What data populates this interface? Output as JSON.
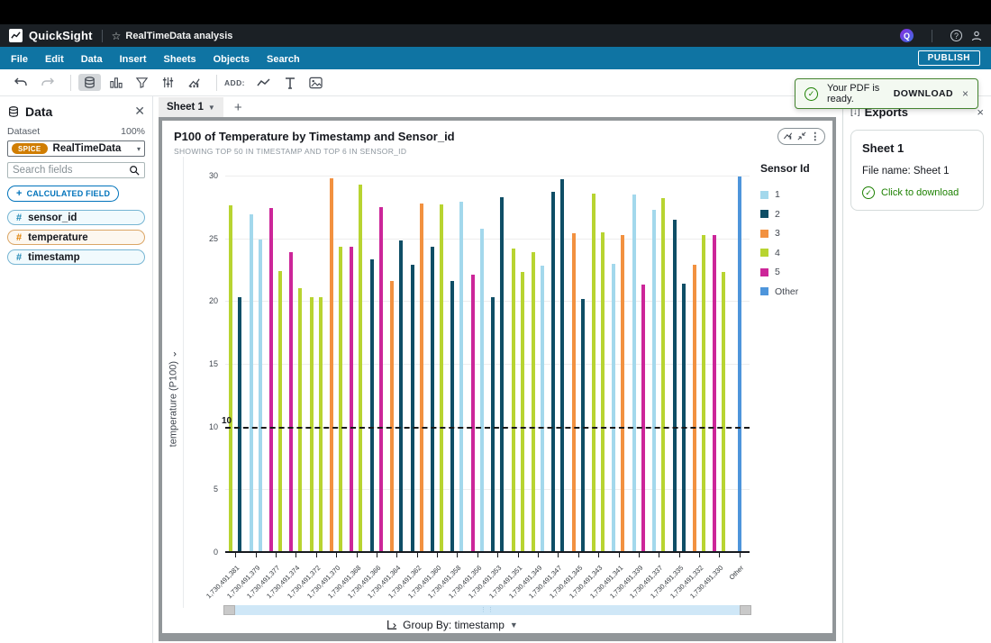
{
  "header": {
    "brand": "QuickSight",
    "doc_title": "RealTimeData analysis",
    "q_label": "Q",
    "help_label": "?"
  },
  "menu": {
    "items": [
      "File",
      "Edit",
      "Data",
      "Insert",
      "Sheets",
      "Objects",
      "Search"
    ],
    "publish_label": "PUBLISH"
  },
  "toolbar": {
    "add_label": "ADD:"
  },
  "toast": {
    "message": "Your PDF is ready.",
    "action_label": "DOWNLOAD",
    "close_label": "×"
  },
  "data_panel": {
    "title": "Data",
    "dataset_label": "Dataset",
    "dataset_percent": "100%",
    "dataset_badge": "SPICE",
    "dataset_name": "RealTimeData",
    "search_placeholder": "Search fields",
    "calculated_field_plus": "+",
    "calculated_field_label": "CALCULATED FIELD",
    "fields": [
      {
        "name": "sensor_id",
        "style": "blue"
      },
      {
        "name": "temperature",
        "style": "orange"
      },
      {
        "name": "timestamp",
        "style": "blue"
      }
    ]
  },
  "sheet_tabs": {
    "active_label": "Sheet 1",
    "add_label": "+"
  },
  "visual": {
    "title": "P100 of Temperature by Timestamp and Sensor_id",
    "subtitle": "SHOWING TOP 50 IN TIMESTAMP AND TOP 6 IN SENSOR_ID",
    "group_by_label": "Group By: timestamp"
  },
  "legend": {
    "title": "Sensor Id",
    "entries": [
      {
        "label": "1",
        "color": "#a3d8ec"
      },
      {
        "label": "2",
        "color": "#0f4e66"
      },
      {
        "label": "3",
        "color": "#f29140"
      },
      {
        "label": "4",
        "color": "#b8d431"
      },
      {
        "label": "5",
        "color": "#cc2699"
      },
      {
        "label": "Other",
        "color": "#4e95db"
      }
    ]
  },
  "chart_data": {
    "type": "bar",
    "title": "P100 of Temperature by Timestamp and Sensor_id",
    "xlabel": "timestamp",
    "ylabel": "temperature (P100)",
    "ylim": [
      0,
      30
    ],
    "yticks": [
      0,
      5,
      10,
      15,
      20,
      25,
      30
    ],
    "reference_line": 10,
    "legend_position": "right",
    "grid": true,
    "palette": {
      "1": "#a3d8ec",
      "2": "#0f4e66",
      "3": "#f29140",
      "4": "#b8d431",
      "5": "#cc2699",
      "Other": "#4e95db"
    },
    "categories": [
      "1,730,491,381",
      "1,730,491,379",
      "1,730,491,377",
      "1,730,491,374",
      "1,730,491,372",
      "1,730,491,370",
      "1,730,491,368",
      "1,730,491,366",
      "1,730,491,364",
      "1,730,491,362",
      "1,730,491,360",
      "1,730,491,358",
      "1,730,491,356",
      "1,730,491,353",
      "1,730,491,351",
      "1,730,491,349",
      "1,730,491,347",
      "1,730,491,345",
      "1,730,491,343",
      "1,730,491,341",
      "1,730,491,339",
      "1,730,491,337",
      "1,730,491,335",
      "1,730,491,332",
      "1,730,491,330",
      "Other"
    ],
    "bars": [
      [
        [
          "4",
          27.6
        ],
        [
          "2",
          20.3
        ]
      ],
      [
        [
          "1",
          26.9
        ],
        [
          "1",
          24.9
        ]
      ],
      [
        [
          "5",
          27.4
        ],
        [
          "4",
          22.4
        ]
      ],
      [
        [
          "5",
          23.9
        ],
        [
          "4",
          21.0
        ]
      ],
      [
        [
          "4",
          20.3
        ],
        [
          "4",
          20.3
        ]
      ],
      [
        [
          "3",
          29.8
        ],
        [
          "4",
          24.3
        ]
      ],
      [
        [
          "5",
          24.3
        ],
        [
          "4",
          29.3
        ]
      ],
      [
        [
          "2",
          23.3
        ],
        [
          "5",
          27.5
        ]
      ],
      [
        [
          "3",
          21.6
        ],
        [
          "2",
          24.8
        ]
      ],
      [
        [
          "2",
          22.9
        ],
        [
          "3",
          27.8
        ]
      ],
      [
        [
          "2",
          24.3
        ],
        [
          "4",
          27.7
        ]
      ],
      [
        [
          "2",
          21.6
        ],
        [
          "1",
          27.9
        ]
      ],
      [
        [
          "5",
          22.1
        ],
        [
          "1",
          25.8
        ]
      ],
      [
        [
          "2",
          20.3
        ],
        [
          "2",
          28.3
        ]
      ],
      [
        [
          "4",
          24.2
        ],
        [
          "4",
          22.3
        ]
      ],
      [
        [
          "4",
          23.9
        ],
        [
          "1",
          22.8
        ]
      ],
      [
        [
          "2",
          28.7
        ],
        [
          "2",
          29.7
        ]
      ],
      [
        [
          "3",
          25.4
        ],
        [
          "2",
          20.2
        ]
      ],
      [
        [
          "4",
          28.6
        ],
        [
          "4",
          25.5
        ]
      ],
      [
        [
          "1",
          23.0
        ],
        [
          "3",
          25.3
        ]
      ],
      [
        [
          "1",
          28.5
        ],
        [
          "5",
          21.3
        ]
      ],
      [
        [
          "1",
          27.3
        ],
        [
          "4",
          28.2
        ]
      ],
      [
        [
          "2",
          26.5
        ],
        [
          "2",
          21.4
        ]
      ],
      [
        [
          "3",
          22.9
        ],
        [
          "4",
          25.3
        ]
      ],
      [
        [
          "5",
          25.3
        ],
        [
          "4",
          22.3
        ]
      ],
      [
        [
          "Other",
          29.9
        ]
      ]
    ]
  },
  "exports_panel": {
    "title": "Exports",
    "close_label": "×",
    "card_title": "Sheet 1",
    "file_name": "File name: Sheet 1",
    "download_label": "Click to download"
  }
}
